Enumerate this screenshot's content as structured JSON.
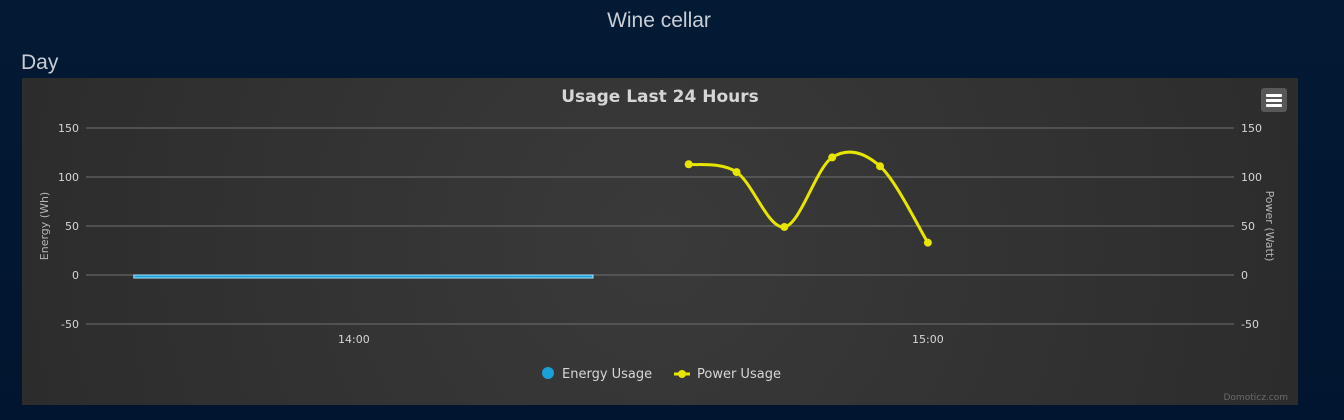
{
  "page": {
    "title": "Wine cellar",
    "section": "Day"
  },
  "colors": {
    "energy": "#1aa0d8",
    "energy_outline": "#a8e4ff",
    "power": "#e6e600",
    "grid": "#707070",
    "text": "#d6d6d6",
    "axis_title": "#b5b5b5"
  },
  "icons": {
    "menu": "hamburger-menu-icon"
  },
  "chart_data": {
    "type": "line",
    "title": "Usage Last 24 Hours",
    "credit": "Domoticz.com",
    "grid": true,
    "legend_position": "bottom-center",
    "x_ticks": [
      "14:00",
      "15:00"
    ],
    "xlim": [
      "13:32",
      "15:32"
    ],
    "y_left": {
      "label": "Energy (Wh)",
      "ylim": [
        -50,
        150
      ],
      "ticks": [
        150,
        100,
        50,
        0,
        -50
      ]
    },
    "y_right": {
      "label": "Power (Watt)",
      "ylim": [
        -50,
        150
      ],
      "ticks": [
        150,
        100,
        50,
        0,
        -50
      ]
    },
    "series": [
      {
        "name": "Energy Usage",
        "type": "column",
        "axis": "left",
        "points": [
          {
            "x_start": "13:37",
            "x_end": "14:25",
            "y": -2
          }
        ]
      },
      {
        "name": "Power Usage",
        "type": "spline",
        "axis": "right",
        "points": [
          {
            "x": "14:35",
            "y": 113
          },
          {
            "x": "14:40",
            "y": 105
          },
          {
            "x": "14:45",
            "y": 49
          },
          {
            "x": "14:50",
            "y": 120
          },
          {
            "x": "14:55",
            "y": 111
          },
          {
            "x": "15:00",
            "y": 33
          }
        ]
      }
    ]
  }
}
